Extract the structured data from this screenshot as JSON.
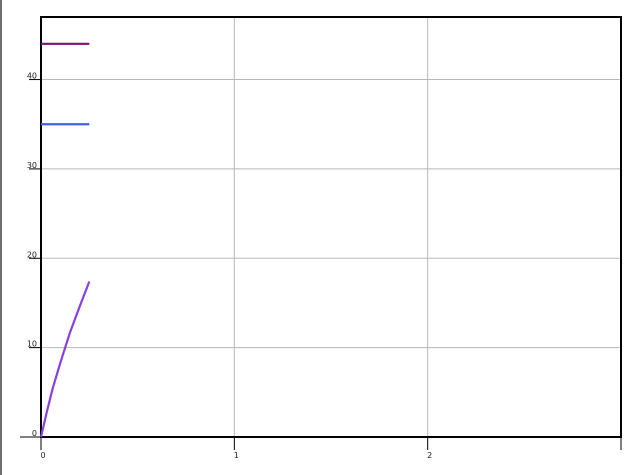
{
  "chart_data": {
    "type": "line",
    "title": "",
    "xlabel": "",
    "ylabel": "",
    "xlim": [
      0,
      3
    ],
    "ylim": [
      0,
      47
    ],
    "x_ticks": [
      "0",
      "1",
      "2"
    ],
    "x_tick_values": [
      0,
      1,
      2
    ],
    "y_ticks": [
      "0",
      "10",
      "20",
      "30",
      "40"
    ],
    "y_tick_values": [
      0,
      10,
      20,
      30,
      40
    ],
    "grid": true,
    "legend": "none",
    "series": [
      {
        "color": "#7a0f7a",
        "points": [
          [
            0,
            44
          ],
          [
            0.25,
            44
          ]
        ]
      },
      {
        "color": "#3f63de",
        "points": [
          [
            0,
            35
          ],
          [
            0.25,
            35
          ]
        ]
      },
      {
        "color": "#8a3fe0",
        "points": [
          [
            0,
            0
          ],
          [
            0.03,
            2.8
          ],
          [
            0.06,
            5.4
          ],
          [
            0.1,
            8.3
          ],
          [
            0.15,
            11.7
          ],
          [
            0.2,
            14.6
          ],
          [
            0.25,
            17.4
          ]
        ]
      }
    ]
  }
}
